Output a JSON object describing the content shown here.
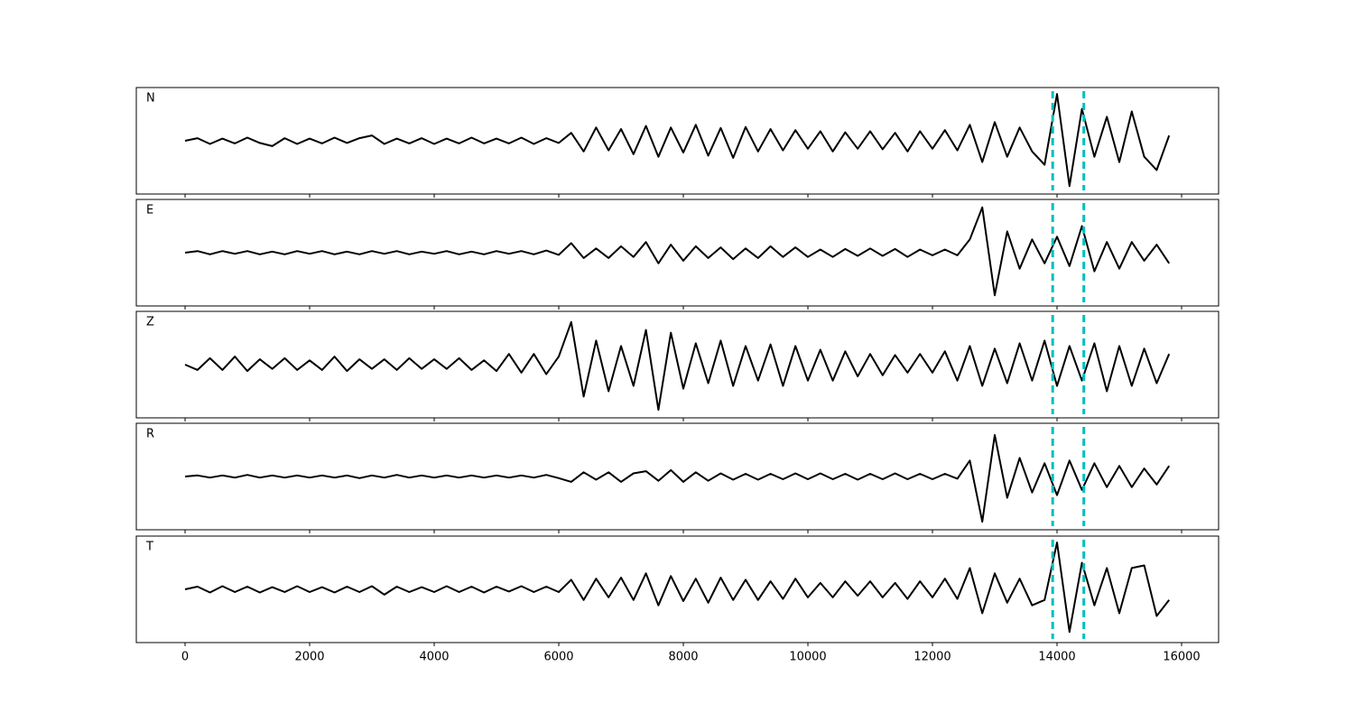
{
  "chart_data": [
    {
      "type": "line",
      "label": "N",
      "color": "#000000",
      "vlines": [
        13930,
        14430
      ],
      "vline_color": "#00bfbf",
      "xlim": [
        -783,
        16594
      ],
      "ylim": [
        -1,
        1
      ],
      "xticks": [
        0,
        2000,
        4000,
        6000,
        8000,
        10000,
        12000,
        14000,
        16000
      ],
      "tick_labels": false,
      "x": [
        0,
        200,
        400,
        600,
        800,
        1000,
        1200,
        1400,
        1600,
        1800,
        2000,
        2200,
        2400,
        2600,
        2800,
        3000,
        3200,
        3400,
        3600,
        3800,
        4000,
        4200,
        4400,
        4600,
        4800,
        5000,
        5200,
        5400,
        5600,
        5800,
        6000,
        6200,
        6400,
        6600,
        6800,
        7000,
        7200,
        7400,
        7600,
        7800,
        8000,
        8200,
        8400,
        8600,
        8800,
        9000,
        9200,
        9400,
        9600,
        9800,
        10000,
        10200,
        10400,
        10600,
        10800,
        11000,
        11200,
        11400,
        11600,
        11800,
        12000,
        12200,
        12400,
        12600,
        12800,
        13000,
        13200,
        13400,
        13600,
        13800,
        14000,
        14200,
        14400,
        14600,
        14800,
        15000,
        15200,
        15400,
        15600,
        15800
      ],
      "values": [
        0.0,
        0.05,
        -0.06,
        0.04,
        -0.05,
        0.06,
        -0.04,
        -0.1,
        0.05,
        -0.06,
        0.04,
        -0.05,
        0.06,
        -0.04,
        0.05,
        0.1,
        -0.06,
        0.04,
        -0.05,
        0.05,
        -0.06,
        0.04,
        -0.05,
        0.06,
        -0.05,
        0.04,
        -0.05,
        0.06,
        -0.06,
        0.05,
        -0.04,
        0.15,
        -0.2,
        0.25,
        -0.18,
        0.22,
        -0.25,
        0.28,
        -0.3,
        0.25,
        -0.22,
        0.3,
        -0.28,
        0.24,
        -0.32,
        0.26,
        -0.2,
        0.22,
        -0.18,
        0.2,
        -0.15,
        0.18,
        -0.2,
        0.16,
        -0.15,
        0.18,
        -0.16,
        0.15,
        -0.2,
        0.18,
        -0.15,
        0.2,
        -0.18,
        0.3,
        -0.4,
        0.35,
        -0.3,
        0.25,
        -0.2,
        -0.45,
        0.88,
        -0.85,
        0.6,
        -0.3,
        0.45,
        -0.4,
        0.55,
        -0.3,
        -0.55,
        0.1
      ]
    },
    {
      "type": "line",
      "label": "E",
      "color": "#000000",
      "vlines": [
        13930,
        14430
      ],
      "vline_color": "#00bfbf",
      "xlim": [
        -783,
        16594
      ],
      "ylim": [
        -1,
        1
      ],
      "xticks": [
        0,
        2000,
        4000,
        6000,
        8000,
        10000,
        12000,
        14000,
        16000
      ],
      "tick_labels": false,
      "x": [
        0,
        200,
        400,
        600,
        800,
        1000,
        1200,
        1400,
        1600,
        1800,
        2000,
        2200,
        2400,
        2600,
        2800,
        3000,
        3200,
        3400,
        3600,
        3800,
        4000,
        4200,
        4400,
        4600,
        4800,
        5000,
        5200,
        5400,
        5600,
        5800,
        6000,
        6200,
        6400,
        6600,
        6800,
        7000,
        7200,
        7400,
        7600,
        7800,
        8000,
        8200,
        8400,
        8600,
        8800,
        9000,
        9200,
        9400,
        9600,
        9800,
        10000,
        10200,
        10400,
        10600,
        10800,
        11000,
        11200,
        11400,
        11600,
        11800,
        12000,
        12200,
        12400,
        12600,
        12800,
        13000,
        13200,
        13400,
        13600,
        13800,
        14000,
        14200,
        14400,
        14600,
        14800,
        15000,
        15200,
        15400,
        15600,
        15800
      ],
      "values": [
        0.0,
        0.03,
        -0.03,
        0.03,
        -0.02,
        0.03,
        -0.03,
        0.02,
        -0.03,
        0.03,
        -0.02,
        0.03,
        -0.03,
        0.02,
        -0.03,
        0.03,
        -0.02,
        0.03,
        -0.03,
        0.02,
        -0.02,
        0.03,
        -0.03,
        0.02,
        -0.03,
        0.03,
        -0.02,
        0.03,
        -0.03,
        0.04,
        -0.04,
        0.18,
        -0.1,
        0.08,
        -0.1,
        0.12,
        -0.08,
        0.2,
        -0.2,
        0.15,
        -0.15,
        0.12,
        -0.1,
        0.1,
        -0.12,
        0.08,
        -0.1,
        0.12,
        -0.08,
        0.1,
        -0.08,
        0.06,
        -0.08,
        0.07,
        -0.06,
        0.08,
        -0.06,
        0.07,
        -0.08,
        0.06,
        -0.05,
        0.06,
        -0.05,
        0.25,
        0.85,
        -0.8,
        0.4,
        -0.3,
        0.25,
        -0.2,
        0.3,
        -0.25,
        0.5,
        -0.35,
        0.2,
        -0.3,
        0.2,
        -0.15,
        0.15,
        -0.2
      ]
    },
    {
      "type": "line",
      "label": "Z",
      "color": "#000000",
      "vlines": [
        13930,
        14430
      ],
      "vline_color": "#00bfbf",
      "xlim": [
        -783,
        16594
      ],
      "ylim": [
        -1,
        1
      ],
      "xticks": [
        0,
        2000,
        4000,
        6000,
        8000,
        10000,
        12000,
        14000,
        16000
      ],
      "tick_labels": false,
      "x": [
        0,
        200,
        400,
        600,
        800,
        1000,
        1200,
        1400,
        1600,
        1800,
        2000,
        2200,
        2400,
        2600,
        2800,
        3000,
        3200,
        3400,
        3600,
        3800,
        4000,
        4200,
        4400,
        4600,
        4800,
        5000,
        5200,
        5400,
        5600,
        5800,
        6000,
        6200,
        6400,
        6600,
        6800,
        7000,
        7200,
        7400,
        7600,
        7800,
        8000,
        8200,
        8400,
        8600,
        8800,
        9000,
        9200,
        9400,
        9600,
        9800,
        10000,
        10200,
        10400,
        10600,
        10800,
        11000,
        11200,
        11400,
        11600,
        11800,
        12000,
        12200,
        12400,
        12600,
        12800,
        13000,
        13200,
        13400,
        13600,
        13800,
        14000,
        14200,
        14400,
        14600,
        14800,
        15000,
        15200,
        15400,
        15600,
        15800
      ],
      "values": [
        0.0,
        -0.1,
        0.12,
        -0.1,
        0.15,
        -0.12,
        0.1,
        -0.08,
        0.12,
        -0.1,
        0.08,
        -0.1,
        0.15,
        -0.12,
        0.1,
        -0.08,
        0.1,
        -0.1,
        0.12,
        -0.08,
        0.1,
        -0.08,
        0.12,
        -0.1,
        0.08,
        -0.12,
        0.2,
        -0.15,
        0.2,
        -0.18,
        0.15,
        0.8,
        -0.6,
        0.45,
        -0.5,
        0.35,
        -0.4,
        0.65,
        -0.85,
        0.6,
        -0.45,
        0.4,
        -0.35,
        0.45,
        -0.4,
        0.35,
        -0.3,
        0.38,
        -0.4,
        0.35,
        -0.3,
        0.28,
        -0.3,
        0.25,
        -0.22,
        0.2,
        -0.2,
        0.18,
        -0.15,
        0.2,
        -0.15,
        0.25,
        -0.3,
        0.35,
        -0.4,
        0.3,
        -0.35,
        0.4,
        -0.3,
        0.45,
        -0.4,
        0.35,
        -0.3,
        0.4,
        -0.5,
        0.35,
        -0.4,
        0.3,
        -0.35,
        0.2
      ]
    },
    {
      "type": "line",
      "label": "R",
      "color": "#000000",
      "vlines": [
        13930,
        14430
      ],
      "vline_color": "#00bfbf",
      "xlim": [
        -783,
        16594
      ],
      "ylim": [
        -1,
        1
      ],
      "xticks": [
        0,
        2000,
        4000,
        6000,
        8000,
        10000,
        12000,
        14000,
        16000
      ],
      "tick_labels": false,
      "x": [
        0,
        200,
        400,
        600,
        800,
        1000,
        1200,
        1400,
        1600,
        1800,
        2000,
        2200,
        2400,
        2600,
        2800,
        3000,
        3200,
        3400,
        3600,
        3800,
        4000,
        4200,
        4400,
        4600,
        4800,
        5000,
        5200,
        5400,
        5600,
        5800,
        6000,
        6200,
        6400,
        6600,
        6800,
        7000,
        7200,
        7400,
        7600,
        7800,
        8000,
        8200,
        8400,
        8600,
        8800,
        9000,
        9200,
        9400,
        9600,
        9800,
        10000,
        10200,
        10400,
        10600,
        10800,
        11000,
        11200,
        11400,
        11600,
        11800,
        12000,
        12200,
        12400,
        12600,
        12800,
        13000,
        13200,
        13400,
        13600,
        13800,
        14000,
        14200,
        14400,
        14600,
        14800,
        15000,
        15200,
        15400,
        15600,
        15800
      ],
      "values": [
        0.0,
        0.02,
        -0.02,
        0.02,
        -0.02,
        0.03,
        -0.02,
        0.02,
        -0.02,
        0.02,
        -0.02,
        0.02,
        -0.02,
        0.02,
        -0.03,
        0.02,
        -0.02,
        0.03,
        -0.02,
        0.02,
        -0.02,
        0.02,
        -0.02,
        0.02,
        -0.02,
        0.02,
        -0.02,
        0.02,
        -0.02,
        0.03,
        -0.03,
        -0.1,
        0.08,
        -0.06,
        0.08,
        -0.1,
        0.06,
        0.1,
        -0.08,
        0.12,
        -0.1,
        0.08,
        -0.08,
        0.06,
        -0.06,
        0.05,
        -0.06,
        0.05,
        -0.05,
        0.06,
        -0.05,
        0.06,
        -0.05,
        0.05,
        -0.06,
        0.05,
        -0.05,
        0.06,
        -0.05,
        0.05,
        -0.05,
        0.05,
        -0.04,
        0.3,
        -0.85,
        0.78,
        -0.4,
        0.35,
        -0.3,
        0.25,
        -0.35,
        0.3,
        -0.25,
        0.25,
        -0.2,
        0.2,
        -0.2,
        0.15,
        -0.15,
        0.2
      ]
    },
    {
      "type": "line",
      "label": "T",
      "color": "#000000",
      "vlines": [
        13930,
        14430
      ],
      "vline_color": "#00bfbf",
      "xlim": [
        -783,
        16594
      ],
      "ylim": [
        -1,
        1
      ],
      "xticks": [
        0,
        2000,
        4000,
        6000,
        8000,
        10000,
        12000,
        14000,
        16000
      ],
      "tick_labels": true,
      "x": [
        0,
        200,
        400,
        600,
        800,
        1000,
        1200,
        1400,
        1600,
        1800,
        2000,
        2200,
        2400,
        2600,
        2800,
        3000,
        3200,
        3400,
        3600,
        3800,
        4000,
        4200,
        4400,
        4600,
        4800,
        5000,
        5200,
        5400,
        5600,
        5800,
        6000,
        6200,
        6400,
        6600,
        6800,
        7000,
        7200,
        7400,
        7600,
        7800,
        8000,
        8200,
        8400,
        8600,
        8800,
        9000,
        9200,
        9400,
        9600,
        9800,
        10000,
        10200,
        10400,
        10600,
        10800,
        11000,
        11200,
        11400,
        11600,
        11800,
        12000,
        12200,
        12400,
        12600,
        12800,
        13000,
        13200,
        13400,
        13600,
        13800,
        14000,
        14200,
        14400,
        14600,
        14800,
        15000,
        15200,
        15400,
        15600,
        15800
      ],
      "values": [
        0.0,
        0.05,
        -0.06,
        0.06,
        -0.05,
        0.05,
        -0.06,
        0.04,
        -0.05,
        0.06,
        -0.05,
        0.04,
        -0.06,
        0.05,
        -0.05,
        0.06,
        -0.1,
        0.05,
        -0.05,
        0.04,
        -0.05,
        0.06,
        -0.05,
        0.05,
        -0.06,
        0.05,
        -0.04,
        0.06,
        -0.05,
        0.05,
        -0.05,
        0.18,
        -0.2,
        0.2,
        -0.15,
        0.22,
        -0.2,
        0.3,
        -0.3,
        0.25,
        -0.22,
        0.2,
        -0.25,
        0.22,
        -0.2,
        0.18,
        -0.2,
        0.15,
        -0.18,
        0.2,
        -0.15,
        0.12,
        -0.15,
        0.15,
        -0.12,
        0.15,
        -0.15,
        0.12,
        -0.18,
        0.15,
        -0.15,
        0.2,
        -0.18,
        0.4,
        -0.45,
        0.3,
        -0.25,
        0.2,
        -0.3,
        -0.2,
        0.88,
        -0.8,
        0.5,
        -0.3,
        0.4,
        -0.45,
        0.4,
        0.45,
        -0.5,
        -0.2
      ]
    }
  ]
}
